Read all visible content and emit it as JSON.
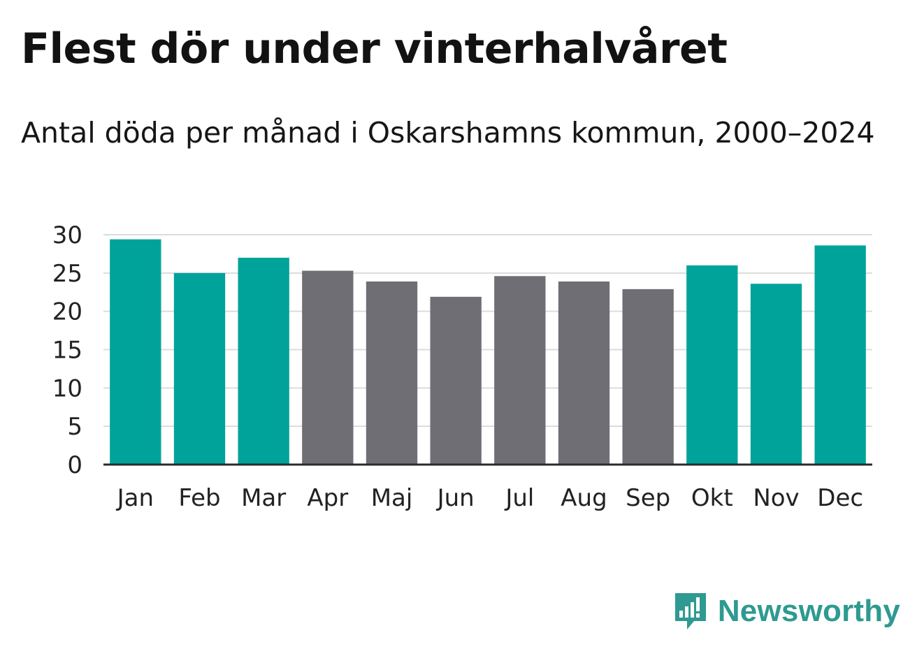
{
  "title": "Flest dör under vinterhalvåret",
  "subtitle": "Antal döda per månad i Oskarshamns kommun, 2000–2024",
  "brand": {
    "name": "Newsworthy",
    "color": "#2e9a91",
    "icon": "speech-bubble-bar-chart-icon"
  },
  "colors": {
    "winter": "#00a39a",
    "summer": "#6f6e74"
  },
  "chart_data": {
    "type": "bar",
    "title": "Antal döda per månad i Oskarshamns kommun, 2000–2024",
    "xlabel": "",
    "ylabel": "",
    "categories": [
      "Jan",
      "Feb",
      "Mar",
      "Apr",
      "Maj",
      "Jun",
      "Jul",
      "Aug",
      "Sep",
      "Okt",
      "Nov",
      "Dec"
    ],
    "values": [
      29.4,
      25.0,
      27.0,
      25.3,
      23.9,
      21.9,
      24.6,
      23.9,
      22.9,
      26.0,
      23.6,
      28.6
    ],
    "groups": [
      "winter",
      "winter",
      "winter",
      "summer",
      "summer",
      "summer",
      "summer",
      "summer",
      "summer",
      "winter",
      "winter",
      "winter"
    ],
    "ylim": [
      0,
      30
    ],
    "yticks": [
      0,
      5,
      10,
      15,
      20,
      25,
      30
    ],
    "grid": true,
    "legend": "none"
  }
}
